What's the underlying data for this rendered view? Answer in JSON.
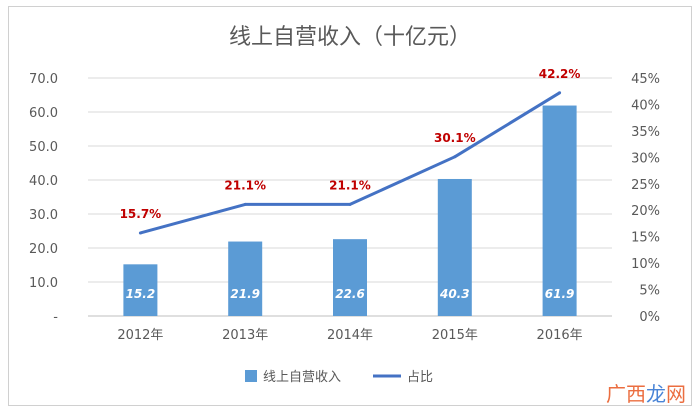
{
  "chart_data": {
    "type": "bar",
    "title": "线上自营收入（十亿元）",
    "categories": [
      "2012年",
      "2013年",
      "2014年",
      "2015年",
      "2016年"
    ],
    "series": [
      {
        "name": "线上自营收入",
        "type": "bar",
        "axis": "left",
        "values": [
          15.2,
          21.9,
          22.6,
          40.3,
          61.9
        ],
        "labels": [
          "15.2",
          "21.9",
          "22.6",
          "40.3",
          "61.9"
        ],
        "color": "#5b9bd5"
      },
      {
        "name": "占比",
        "type": "line",
        "axis": "right",
        "values": [
          15.7,
          21.1,
          21.1,
          30.1,
          42.2
        ],
        "labels": [
          "15.7%",
          "21.1%",
          "21.1%",
          "30.1%",
          "42.2%"
        ],
        "color": "#4472c4"
      }
    ],
    "left_axis": {
      "ylim": [
        0,
        70
      ],
      "ticks": [
        "-",
        "10.0",
        "20.0",
        "30.0",
        "40.0",
        "50.0",
        "60.0",
        "70.0"
      ]
    },
    "right_axis": {
      "ylim": [
        0,
        45
      ],
      "ticks": [
        "0%",
        "5%",
        "10%",
        "15%",
        "20%",
        "25%",
        "30%",
        "35%",
        "40%",
        "45%"
      ]
    },
    "grid": true,
    "legend": "bottom",
    "line_label_color": "#c00000"
  },
  "watermark": {
    "text_a": "广西",
    "text_b": "龙",
    "text_c": "网"
  }
}
